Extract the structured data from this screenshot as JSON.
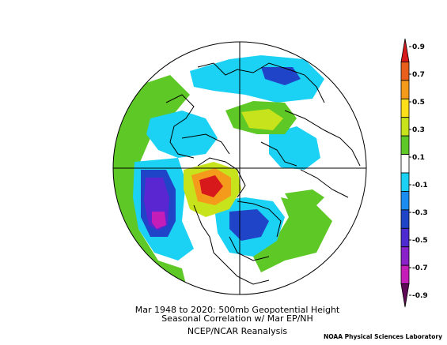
{
  "caption": {
    "line1": "Mar 1948 to 2020: 500mb Geopotential Height",
    "line2": "Seasonal Correlation w/ Mar EP/NH",
    "line3": "NCEP/NCAR Reanalysis"
  },
  "credit": "NOAA Physical Sciences Laboratory",
  "colorbar": {
    "labels": [
      "0.9",
      "0.7",
      "0.5",
      "0.3",
      "0.1",
      "-0.1",
      "-0.3",
      "-0.5",
      "-0.7",
      "-0.9"
    ],
    "colors": [
      "#d7191c",
      "#e8601c",
      "#f59b1c",
      "#fde01a",
      "#c7e31b",
      "#5ec826",
      "#ffffff",
      "#1bd2f5",
      "#1b8cf0",
      "#1f44c8",
      "#4e2bd0",
      "#8a22c9",
      "#c41db8",
      "#5e0a57"
    ]
  },
  "map": {
    "projection": "north-polar-stereographic",
    "field_colors": {
      "neg_strong": "#c41db8",
      "neg_mid": "#5a26d1",
      "neg_weak": "#1f44c8",
      "neg_light": "#1bd2f5",
      "pos_light": "#5ec826",
      "pos_weak": "#c7e31b",
      "pos_mid": "#f59b1c",
      "pos_strong": "#d7191c"
    }
  }
}
